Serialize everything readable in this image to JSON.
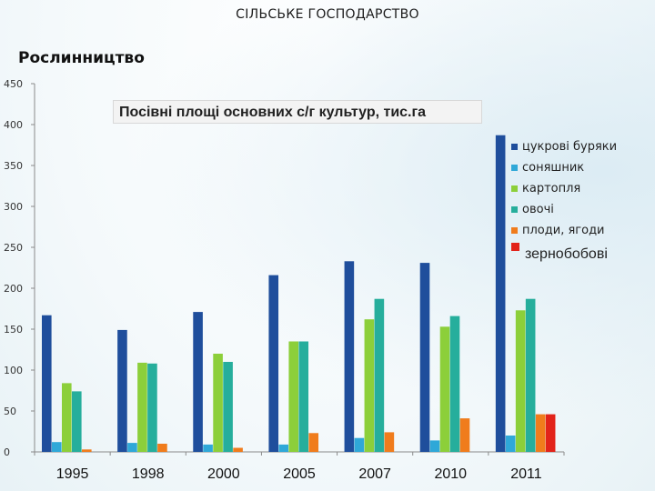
{
  "header": {
    "section_title": "СІЛЬСЬКЕ ГОСПОДАРСТВО",
    "subtitle": "Рослинництво"
  },
  "chart_data": {
    "type": "bar",
    "title": "Посівні площі основних с/г культур, тис.га",
    "xlabel": "",
    "ylabel": "",
    "categories": [
      "1995",
      "1998",
      "2000",
      "2005",
      "2007",
      "2010",
      "2011"
    ],
    "ylim": [
      0,
      450
    ],
    "yticks": [
      0,
      50,
      100,
      150,
      200,
      250,
      300,
      350,
      400,
      450
    ],
    "grid": false,
    "legend_position": "right",
    "series": [
      {
        "name": "цукрові буряки",
        "color": "#1f4e9c",
        "values": [
          167,
          149,
          171,
          216,
          233,
          231,
          387
        ]
      },
      {
        "name": "соняшник",
        "color": "#2fa8d8",
        "values": [
          12,
          11,
          9,
          9,
          17,
          14,
          20
        ]
      },
      {
        "name": "картопля",
        "color": "#8ccf3a",
        "values": [
          84,
          109,
          120,
          135,
          162,
          153,
          173
        ]
      },
      {
        "name": "овочі",
        "color": "#26ae9c",
        "values": [
          74,
          108,
          110,
          135,
          187,
          166,
          187
        ]
      },
      {
        "name": "плоди, ягоди",
        "color": "#f07c1c",
        "values": [
          3,
          10,
          5,
          23,
          24,
          41,
          46
        ]
      },
      {
        "name": "зернобобові",
        "color": "#e2231a",
        "values": [
          null,
          null,
          null,
          null,
          null,
          null,
          46
        ]
      }
    ]
  }
}
